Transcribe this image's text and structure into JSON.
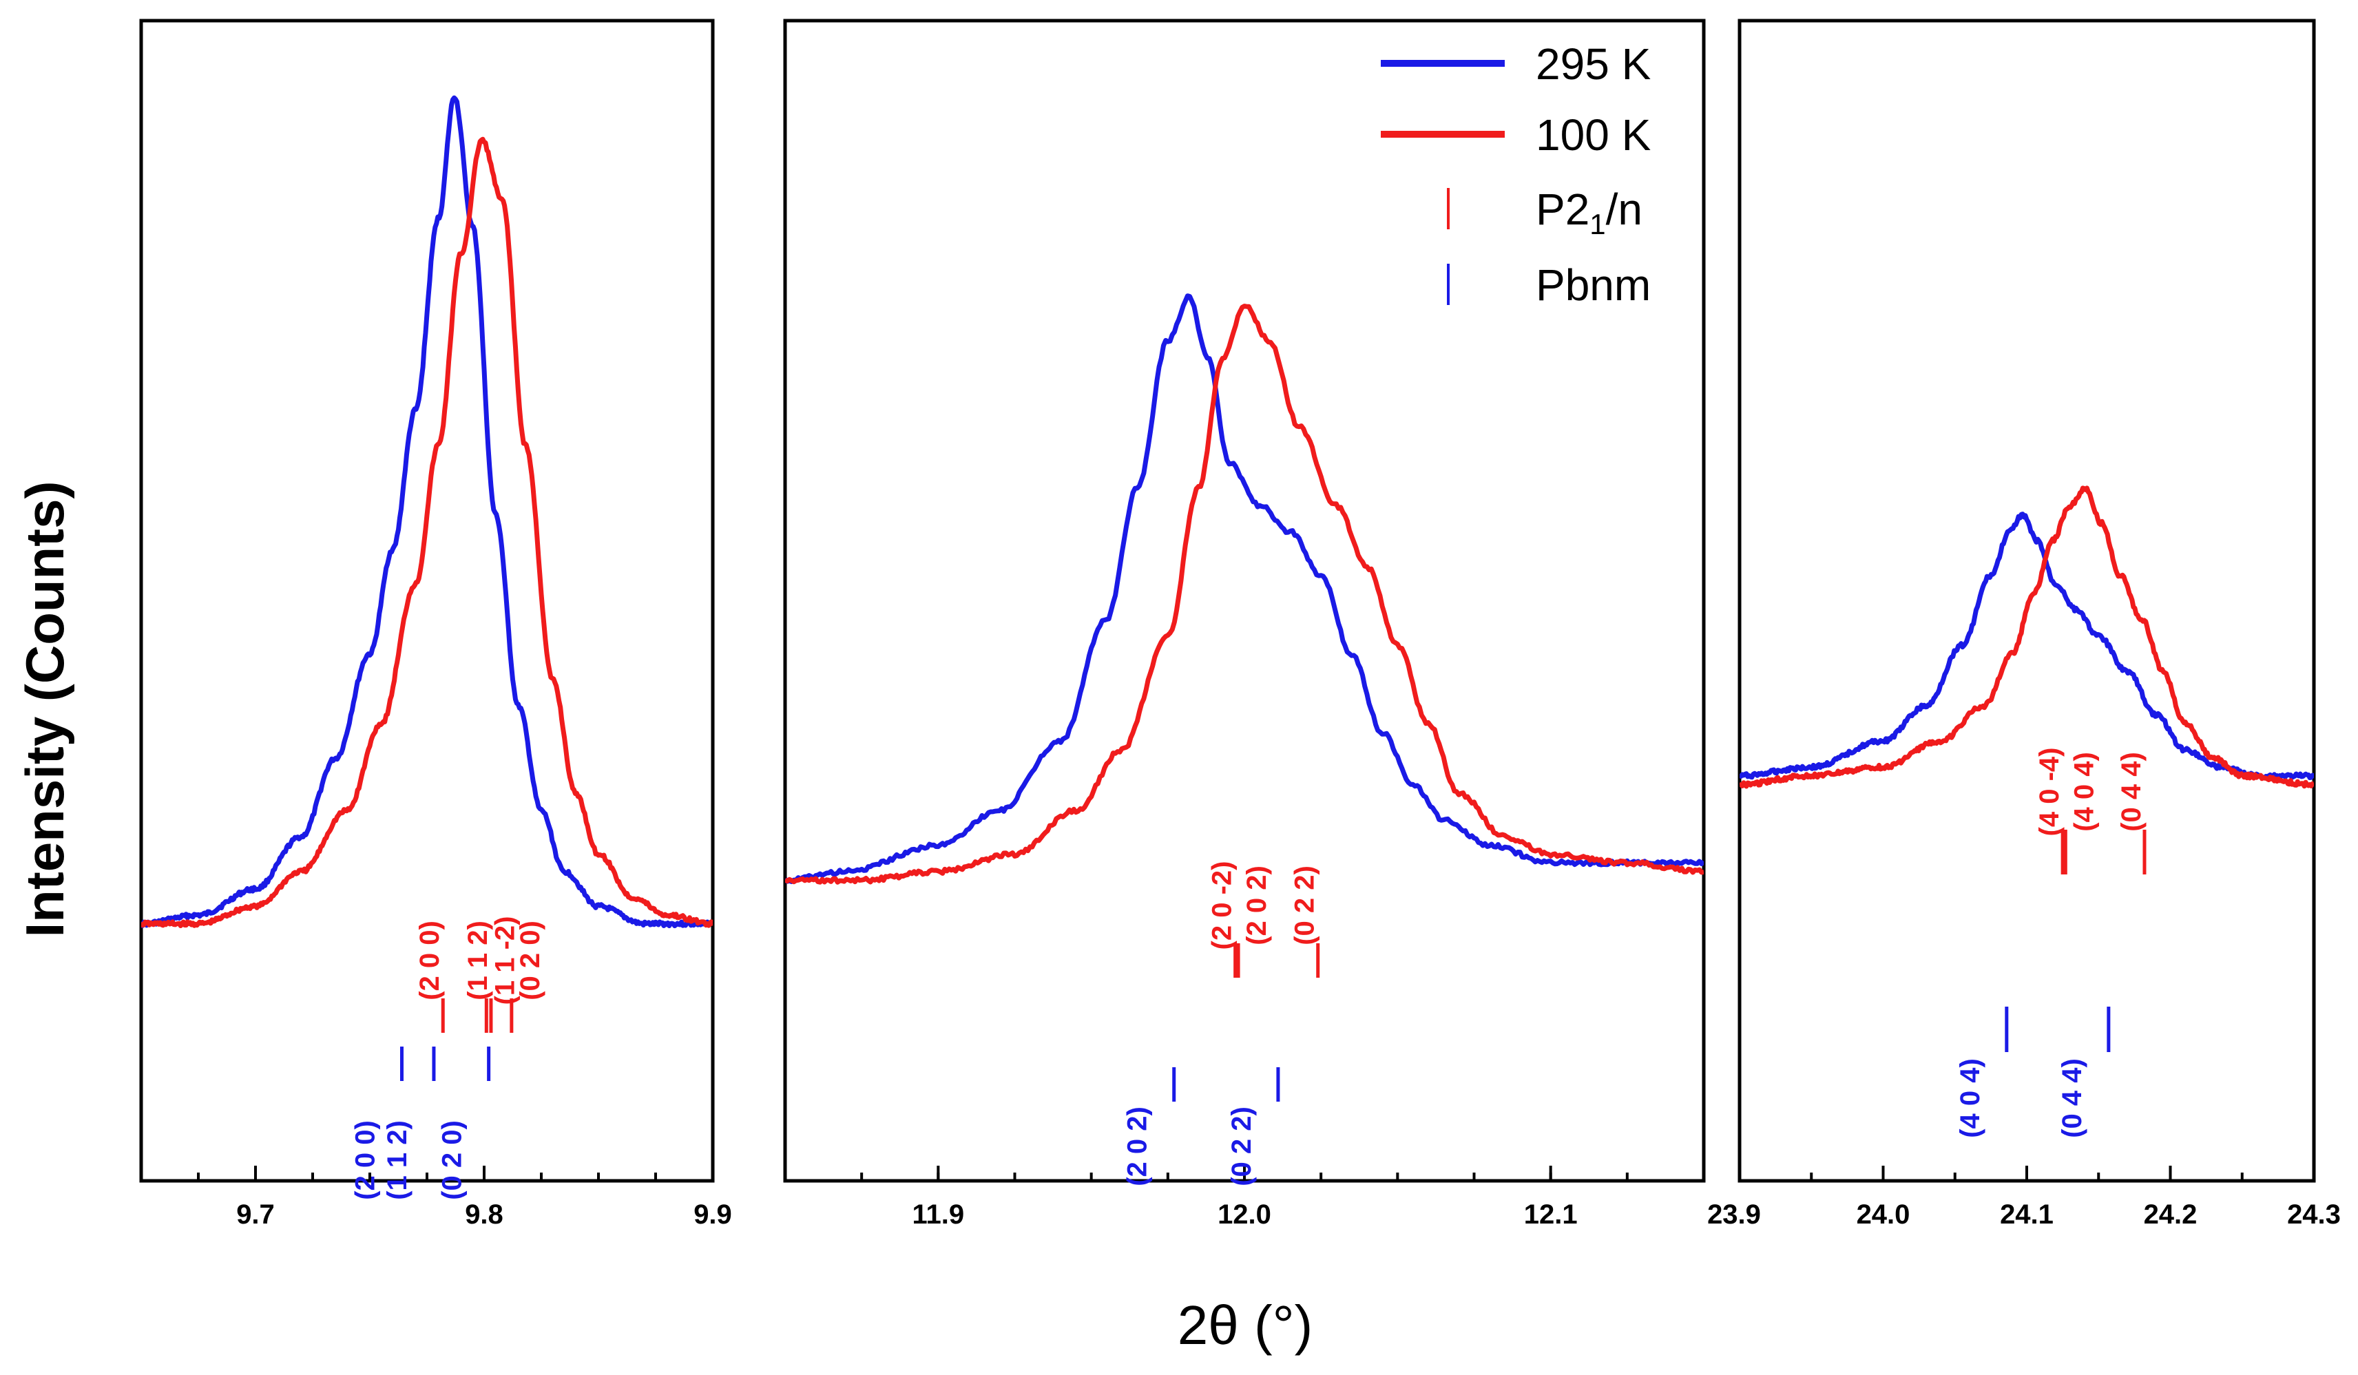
{
  "chart_data": {
    "type": "line",
    "ylabel": "Intensity (Counts)",
    "xlabel": "2θ (°)",
    "colors": {
      "295 K": "#1a1ae6",
      "100 K": "#f01c1c",
      "P21/n": "#f01c1c",
      "Pbnm": "#1a1ae6"
    },
    "legend": {
      "position": "top-right of middle panel",
      "entries": [
        {
          "label": "295 K",
          "style": "line",
          "color": "#1a1ae6"
        },
        {
          "label": "100 K",
          "style": "line",
          "color": "#f01c1c"
        },
        {
          "label": "P2",
          "sub": "1",
          "after": "/n",
          "style": "tick",
          "color": "#f01c1c"
        },
        {
          "label": "Pbnm",
          "style": "tick",
          "color": "#1a1ae6"
        }
      ]
    },
    "panels": [
      {
        "xlim": [
          9.65,
          9.9
        ],
        "ylim": [
          0,
          100
        ],
        "ticks": [
          "9.7",
          "9.8",
          "9.9"
        ],
        "tick_values": [
          9.7,
          9.8,
          9.9
        ],
        "series": [
          {
            "name": "295 K",
            "color": "#1a1ae6",
            "x": [
              9.65,
              9.675,
              9.7,
              9.72,
              9.735,
              9.75,
              9.76,
              9.77,
              9.78,
              9.787,
              9.795,
              9.805,
              9.815,
              9.825,
              9.835,
              9.85,
              9.87,
              9.9
            ],
            "y": [
              5,
              6,
              9,
              15,
              24,
              36,
              48,
              64,
              86,
              100,
              85,
              52,
              30,
              18,
              11,
              7,
              5,
              5
            ]
          },
          {
            "name": "100 K",
            "color": "#f01c1c",
            "x": [
              9.65,
              9.675,
              9.7,
              9.72,
              9.74,
              9.755,
              9.77,
              9.78,
              9.79,
              9.799,
              9.808,
              9.818,
              9.83,
              9.84,
              9.85,
              9.865,
              9.88,
              9.9
            ],
            "y": [
              5,
              5,
              7,
              11,
              18,
              28,
              44,
              60,
              82,
              95,
              88,
              60,
              33,
              20,
              13,
              8,
              6,
              5
            ]
          }
        ],
        "reflections": [
          {
            "phase": "P21/n",
            "label": "(2 0 0)",
            "x": 9.782,
            "n": 1
          },
          {
            "phase": "P21/n",
            "label": "(1 1 -2)",
            "x": 9.801,
            "n": 2
          },
          {
            "phase": "P21/n",
            "label": "(1 1 2)",
            "x": 9.803,
            "n": 2
          },
          {
            "phase": "P21/n",
            "label": "(0 2 0)",
            "x": 9.812,
            "n": 1
          },
          {
            "phase": "Pbnm",
            "label": "(2 0 0)",
            "x": 9.764,
            "n": 1
          },
          {
            "phase": "Pbnm",
            "label": "(1 1 2)",
            "x": 9.778,
            "n": 1
          },
          {
            "phase": "Pbnm",
            "label": "(0 2 0)",
            "x": 9.802,
            "n": 1
          }
        ]
      },
      {
        "xlim": [
          11.85,
          12.15
        ],
        "ylim": [
          0,
          100
        ],
        "ticks": [
          "11.9",
          "12.0",
          "12.1"
        ],
        "tick_values": [
          11.9,
          12.0,
          12.1
        ],
        "series": [
          {
            "name": "295 K",
            "color": "#1a1ae6",
            "x": [
              11.85,
              11.87,
              11.9,
              11.92,
              11.94,
              11.955,
              11.965,
              11.975,
              11.982,
              11.988,
              11.995,
              12.005,
              12.015,
              12.025,
              12.035,
              12.045,
              12.055,
              12.065,
              12.08,
              12.1,
              12.13,
              12.15
            ],
            "y": [
              10,
              11,
              14,
              18,
              26,
              40,
              55,
              72,
              77,
              70,
              58,
              53,
              50,
              45,
              36,
              27,
              21,
              17,
              14,
              12,
              12,
              12
            ]
          },
          {
            "name": "100 K",
            "color": "#f01c1c",
            "x": [
              11.85,
              11.875,
              11.9,
              11.925,
              11.945,
              11.96,
              11.975,
              11.985,
              11.993,
              12.0,
              12.008,
              12.018,
              12.03,
              12.04,
              12.05,
              12.06,
              12.07,
              12.085,
              12.1,
              12.125,
              12.15
            ],
            "y": [
              10,
              10,
              11,
              13,
              18,
              25,
              38,
              55,
              70,
              76,
              72,
              62,
              53,
              46,
              37,
              28,
              20,
              15,
              13,
              12,
              11
            ]
          }
        ],
        "reflections": [
          {
            "phase": "P21/n",
            "label": "(2 0 -2)",
            "x": 11.997,
            "n": 2
          },
          {
            "phase": "P21/n",
            "label": "(2 0 2)",
            "x": 11.998,
            "n": 2
          },
          {
            "phase": "P21/n",
            "label": "(0 2 2)",
            "x": 12.024,
            "n": 1
          },
          {
            "phase": "Pbnm",
            "label": "(2 0 2)",
            "x": 11.977,
            "n": 1
          },
          {
            "phase": "Pbnm",
            "label": "(0 2 2)",
            "x": 12.011,
            "n": 1
          }
        ]
      },
      {
        "xlim": [
          23.9,
          24.3
        ],
        "ylim": [
          0,
          100
        ],
        "ticks": [
          "24.0",
          "24.1",
          "24.2",
          "24.3"
        ],
        "edge_tick": "23.9",
        "tick_values": [
          24.0,
          24.1,
          24.2,
          24.3
        ],
        "series": [
          {
            "name": "295 K",
            "color": "#1a1ae6",
            "x": [
              23.9,
              23.95,
              24.0,
              24.03,
              24.055,
              24.075,
              24.088,
              24.097,
              24.107,
              24.12,
              24.135,
              24.15,
              24.17,
              24.19,
              24.21,
              24.235,
              24.26,
              24.3
            ],
            "y": [
              22,
              23,
              26,
              30,
              37,
              45,
              50,
              52,
              49,
              44,
              41,
              38,
              34,
              29,
              25,
              23,
              22,
              22
            ]
          },
          {
            "name": "100 K",
            "color": "#f01c1c",
            "x": [
              23.9,
              23.95,
              24.0,
              24.04,
              24.07,
              24.09,
              24.105,
              24.118,
              24.13,
              24.141,
              24.152,
              24.165,
              24.18,
              24.195,
              24.21,
              24.23,
              24.25,
              24.3
            ],
            "y": [
              21,
              22,
              23,
              26,
              30,
              36,
              43,
              49,
              53,
              55,
              51,
              45,
              40,
              34,
              28,
              24,
              22,
              21
            ]
          }
        ],
        "reflections": [
          {
            "phase": "P21/n",
            "label": "(4 0 -4)",
            "x": 24.125,
            "n": 2
          },
          {
            "phase": "P21/n",
            "label": "(4 0 4)",
            "x": 24.127,
            "n": 2
          },
          {
            "phase": "P21/n",
            "label": "(0 4 4)",
            "x": 24.182,
            "n": 1
          },
          {
            "phase": "Pbnm",
            "label": "(4 0 4)",
            "x": 24.086,
            "n": 1
          },
          {
            "phase": "Pbnm",
            "label": "(0 4 4)",
            "x": 24.157,
            "n": 1
          }
        ]
      }
    ]
  }
}
